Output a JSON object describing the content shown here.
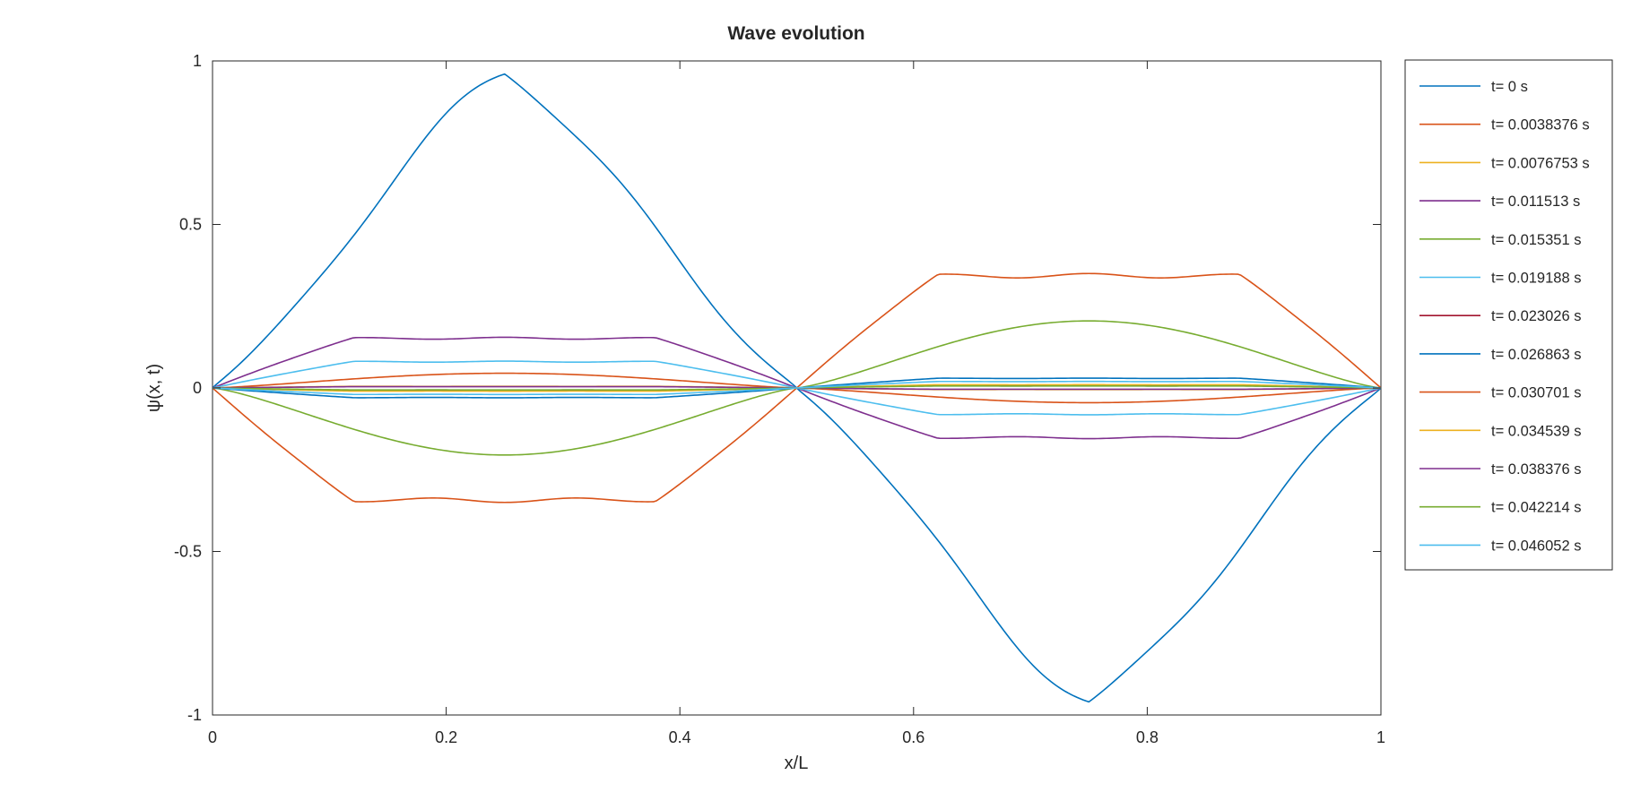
{
  "chart_data": {
    "type": "line",
    "title": "Wave evolution",
    "xlabel": "x/L",
    "ylabel": "ψ(x, t)",
    "xlim": [
      0,
      1
    ],
    "ylim": [
      -1,
      1
    ],
    "xticks": [
      0,
      0.2,
      0.4,
      0.6,
      0.8,
      1
    ],
    "xtick_labels": [
      "0",
      "0.2",
      "0.4",
      "0.6",
      "0.8",
      "1"
    ],
    "yticks": [
      -1,
      -0.5,
      0,
      0.5,
      1
    ],
    "ytick_labels": [
      "-1",
      "-0.5",
      "0",
      "0.5",
      "1"
    ],
    "grid": false,
    "legend_position": "outside-right",
    "series": [
      {
        "name": "t= 0 s",
        "color": "#0072BD",
        "amplitude": 0.96,
        "profile": "triangle"
      },
      {
        "name": "t= 0.0038376 s",
        "color": "#D95319",
        "amplitude": -0.35,
        "profile": "plateau"
      },
      {
        "name": "t= 0.0076753 s",
        "color": "#EDB120",
        "amplitude": 0.005,
        "profile": "plateau"
      },
      {
        "name": "t= 0.011513 s",
        "color": "#7E2F8E",
        "amplitude": 0.155,
        "profile": "plateau"
      },
      {
        "name": "t= 0.015351 s",
        "color": "#77AC30",
        "amplitude": -0.205,
        "profile": "peaked"
      },
      {
        "name": "t= 0.019188 s",
        "color": "#4DBEEE",
        "amplitude": 0.082,
        "profile": "plateau"
      },
      {
        "name": "t= 0.023026 s",
        "color": "#A2142F",
        "amplitude": -0.008,
        "profile": "plateau"
      },
      {
        "name": "t= 0.026863 s",
        "color": "#0072BD",
        "amplitude": -0.03,
        "profile": "plateau"
      },
      {
        "name": "t= 0.030701 s",
        "color": "#D95319",
        "amplitude": 0.045,
        "profile": "peaked"
      },
      {
        "name": "t= 0.034539 s",
        "color": "#EDB120",
        "amplitude": -0.01,
        "profile": "plateau"
      },
      {
        "name": "t= 0.038376 s",
        "color": "#7E2F8E",
        "amplitude": 0.004,
        "profile": "plateau"
      },
      {
        "name": "t= 0.042214 s",
        "color": "#77AC30",
        "amplitude": -0.006,
        "profile": "plateau"
      },
      {
        "name": "t= 0.046052 s",
        "color": "#4DBEEE",
        "amplitude": -0.02,
        "profile": "plateau"
      }
    ]
  }
}
